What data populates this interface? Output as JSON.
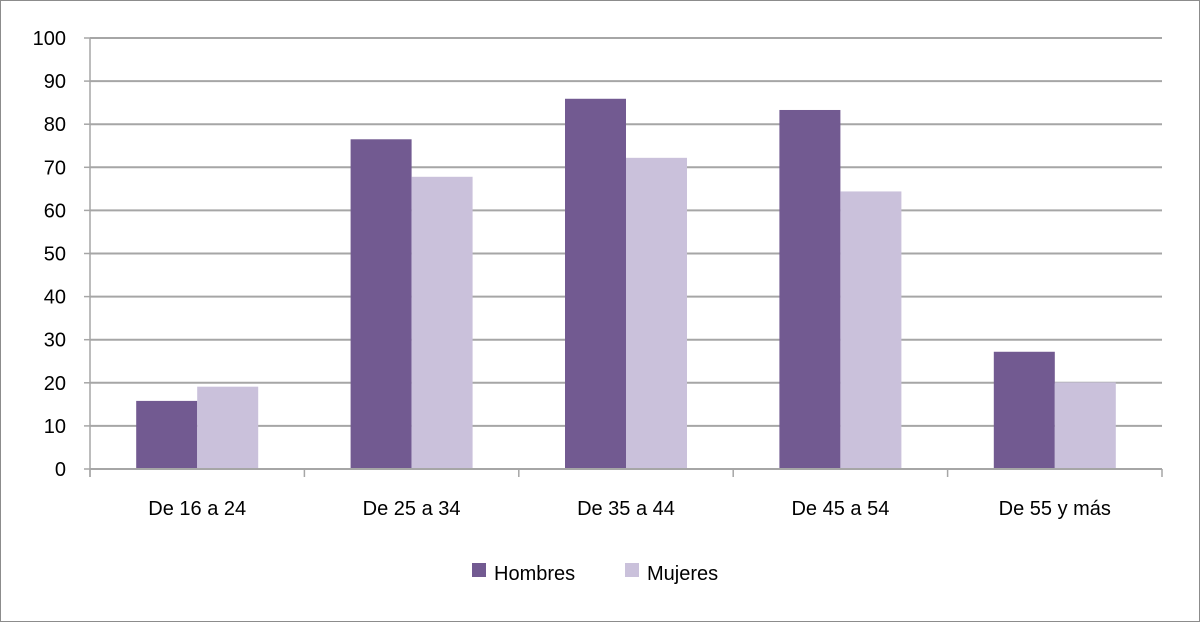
{
  "chart_data": {
    "type": "bar",
    "categories": [
      "De 16 a 24",
      "De 25 a 34",
      "De 35 a 44",
      "De 45 a 54",
      "De 55 y más"
    ],
    "series": [
      {
        "name": "Hombres",
        "color": "#725a91",
        "values": [
          15.8,
          76.5,
          85.9,
          83.3,
          27.2
        ]
      },
      {
        "name": "Mujeres",
        "color": "#cac1db",
        "values": [
          19.1,
          67.8,
          72.2,
          64.4,
          20.1
        ]
      }
    ],
    "ylim": [
      0,
      100
    ],
    "yticks": [
      0,
      10,
      20,
      30,
      40,
      50,
      60,
      70,
      80,
      90,
      100
    ],
    "grid": true,
    "legend": "bottom"
  }
}
